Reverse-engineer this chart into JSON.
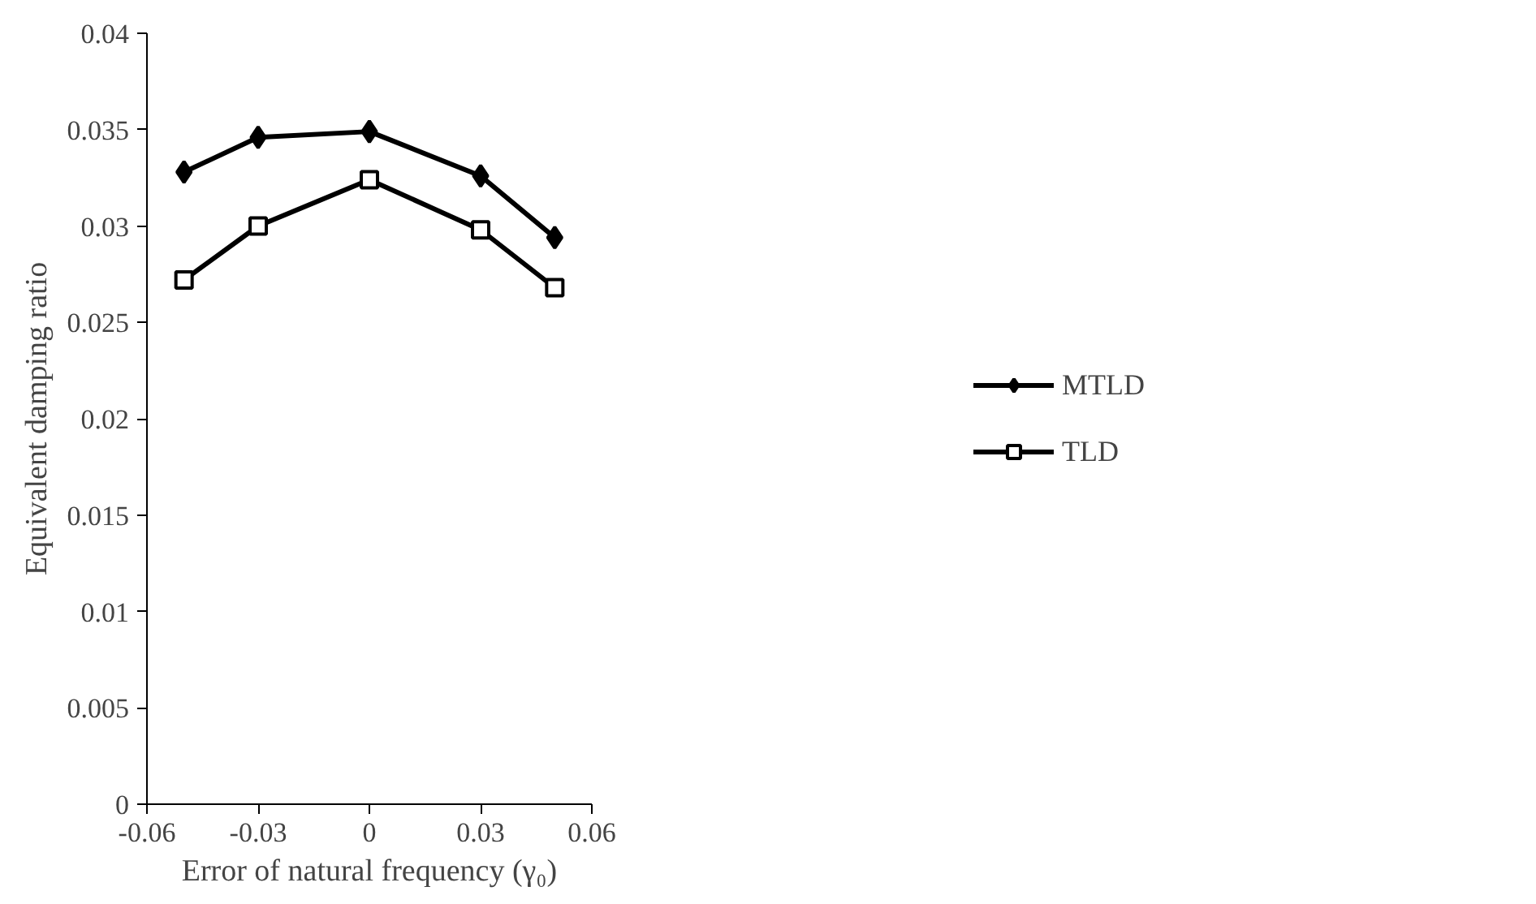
{
  "chart_data": {
    "type": "line",
    "xlabel": "Error of natural frequency (γ₀)",
    "ylabel": "Equivalent damping ratio",
    "x": [
      -0.05,
      -0.03,
      0,
      0.03,
      0.05
    ],
    "series": [
      {
        "name": "MTLD",
        "color": "#000000",
        "marker": "diamond",
        "values": [
          0.0328,
          0.0346,
          0.0349,
          0.0326,
          0.0294
        ]
      },
      {
        "name": "TLD",
        "color": "#000000",
        "marker": "square",
        "values": [
          0.0272,
          0.03,
          0.0324,
          0.0298,
          0.0268
        ]
      }
    ],
    "xlim": [
      -0.06,
      0.06
    ],
    "xticks": [
      -0.06,
      -0.03,
      0,
      0.03,
      0.06
    ],
    "ylim": [
      0,
      0.04
    ],
    "yticks": [
      0,
      0.005,
      0.01,
      0.015,
      0.02,
      0.025,
      0.03,
      0.035,
      0.04
    ],
    "grid": false,
    "legend": "right",
    "line_style": "solid"
  }
}
